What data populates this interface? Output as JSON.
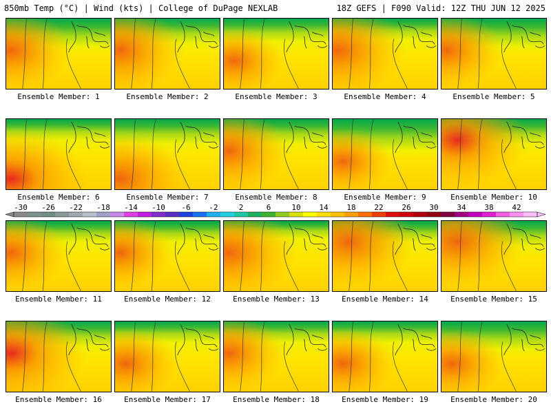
{
  "header": {
    "left": "850mb Temp (°C) | Wind (kts) | College of DuPage NEXLAB",
    "right": "18Z GEFS | F090 Valid: 12Z THU JUN 12 2025"
  },
  "panels": [
    {
      "label": "Ensemble Member: 1",
      "green_extent": 0.35,
      "hot_spot": "left",
      "hot_strength": 0.5
    },
    {
      "label": "Ensemble Member: 2",
      "green_extent": 0.3,
      "hot_spot": "left",
      "hot_strength": 0.6
    },
    {
      "label": "Ensemble Member: 3",
      "green_extent": 0.28,
      "hot_spot": "none",
      "hot_strength": 0.2
    },
    {
      "label": "Ensemble Member: 4",
      "green_extent": 0.25,
      "hot_spot": "left",
      "hot_strength": 0.7
    },
    {
      "label": "Ensemble Member: 5",
      "green_extent": 0.35,
      "hot_spot": "left",
      "hot_strength": 0.4
    },
    {
      "label": "Ensemble Member: 6",
      "green_extent": 0.25,
      "hot_spot": "bottom-left",
      "hot_strength": 0.9
    },
    {
      "label": "Ensemble Member: 7",
      "green_extent": 0.3,
      "hot_spot": "bottom-left",
      "hot_strength": 0.7
    },
    {
      "label": "Ensemble Member: 8",
      "green_extent": 0.3,
      "hot_spot": "left",
      "hot_strength": 0.5
    },
    {
      "label": "Ensemble Member: 9",
      "green_extent": 0.4,
      "hot_spot": "none",
      "hot_strength": 0.2
    },
    {
      "label": "Ensemble Member: 10",
      "green_extent": 0.3,
      "hot_spot": "top-left",
      "hot_strength": 0.8
    },
    {
      "label": "Ensemble Member: 11",
      "green_extent": 0.25,
      "hot_spot": "left",
      "hot_strength": 0.4
    },
    {
      "label": "Ensemble Member: 12",
      "green_extent": 0.25,
      "hot_spot": "left",
      "hot_strength": 0.3
    },
    {
      "label": "Ensemble Member: 13",
      "green_extent": 0.2,
      "hot_spot": "left",
      "hot_strength": 0.7
    },
    {
      "label": "Ensemble Member: 14",
      "green_extent": 0.25,
      "hot_spot": "top-left",
      "hot_strength": 0.7
    },
    {
      "label": "Ensemble Member: 15",
      "green_extent": 0.3,
      "hot_spot": "top-left",
      "hot_strength": 0.7
    },
    {
      "label": "Ensemble Member: 16",
      "green_extent": 0.3,
      "hot_spot": "left",
      "hot_strength": 0.9
    },
    {
      "label": "Ensemble Member: 17",
      "green_extent": 0.25,
      "hot_spot": "none",
      "hot_strength": 0.3
    },
    {
      "label": "Ensemble Member: 18",
      "green_extent": 0.25,
      "hot_spot": "left",
      "hot_strength": 0.4
    },
    {
      "label": "Ensemble Member: 19",
      "green_extent": 0.25,
      "hot_spot": "none",
      "hot_strength": 0.3
    },
    {
      "label": "Ensemble Member: 20",
      "green_extent": 0.35,
      "hot_spot": "none",
      "hot_strength": 0.3
    }
  ],
  "colorbar": {
    "tick_labels": [
      "-30",
      "-26",
      "-22",
      "-18",
      "-14",
      "-10",
      "-6",
      "-2",
      "2",
      "6",
      "10",
      "14",
      "18",
      "22",
      "26",
      "30",
      "34",
      "38",
      "42"
    ],
    "colors": [
      "#8a8a8a",
      "#7f8f8f",
      "#6f8f83",
      "#8a9a9a",
      "#a0a8b0",
      "#b8c0cc",
      "#a0a0c8",
      "#c888e8",
      "#e040e0",
      "#c020e0",
      "#8030c8",
      "#5a30c0",
      "#2040e0",
      "#1a70f0",
      "#20b0f0",
      "#20d0e0",
      "#20c8a0",
      "#20b060",
      "#40b030",
      "#90cc20",
      "#d8e000",
      "#ffff00",
      "#ffe000",
      "#ffc000",
      "#ffa000",
      "#ff7000",
      "#f04000",
      "#e01010",
      "#d00010",
      "#b00010",
      "#900010",
      "#800040",
      "#a00080",
      "#c000c0",
      "#e020d0",
      "#f060e0",
      "#ff90f0",
      "#ffc0ff"
    ]
  }
}
